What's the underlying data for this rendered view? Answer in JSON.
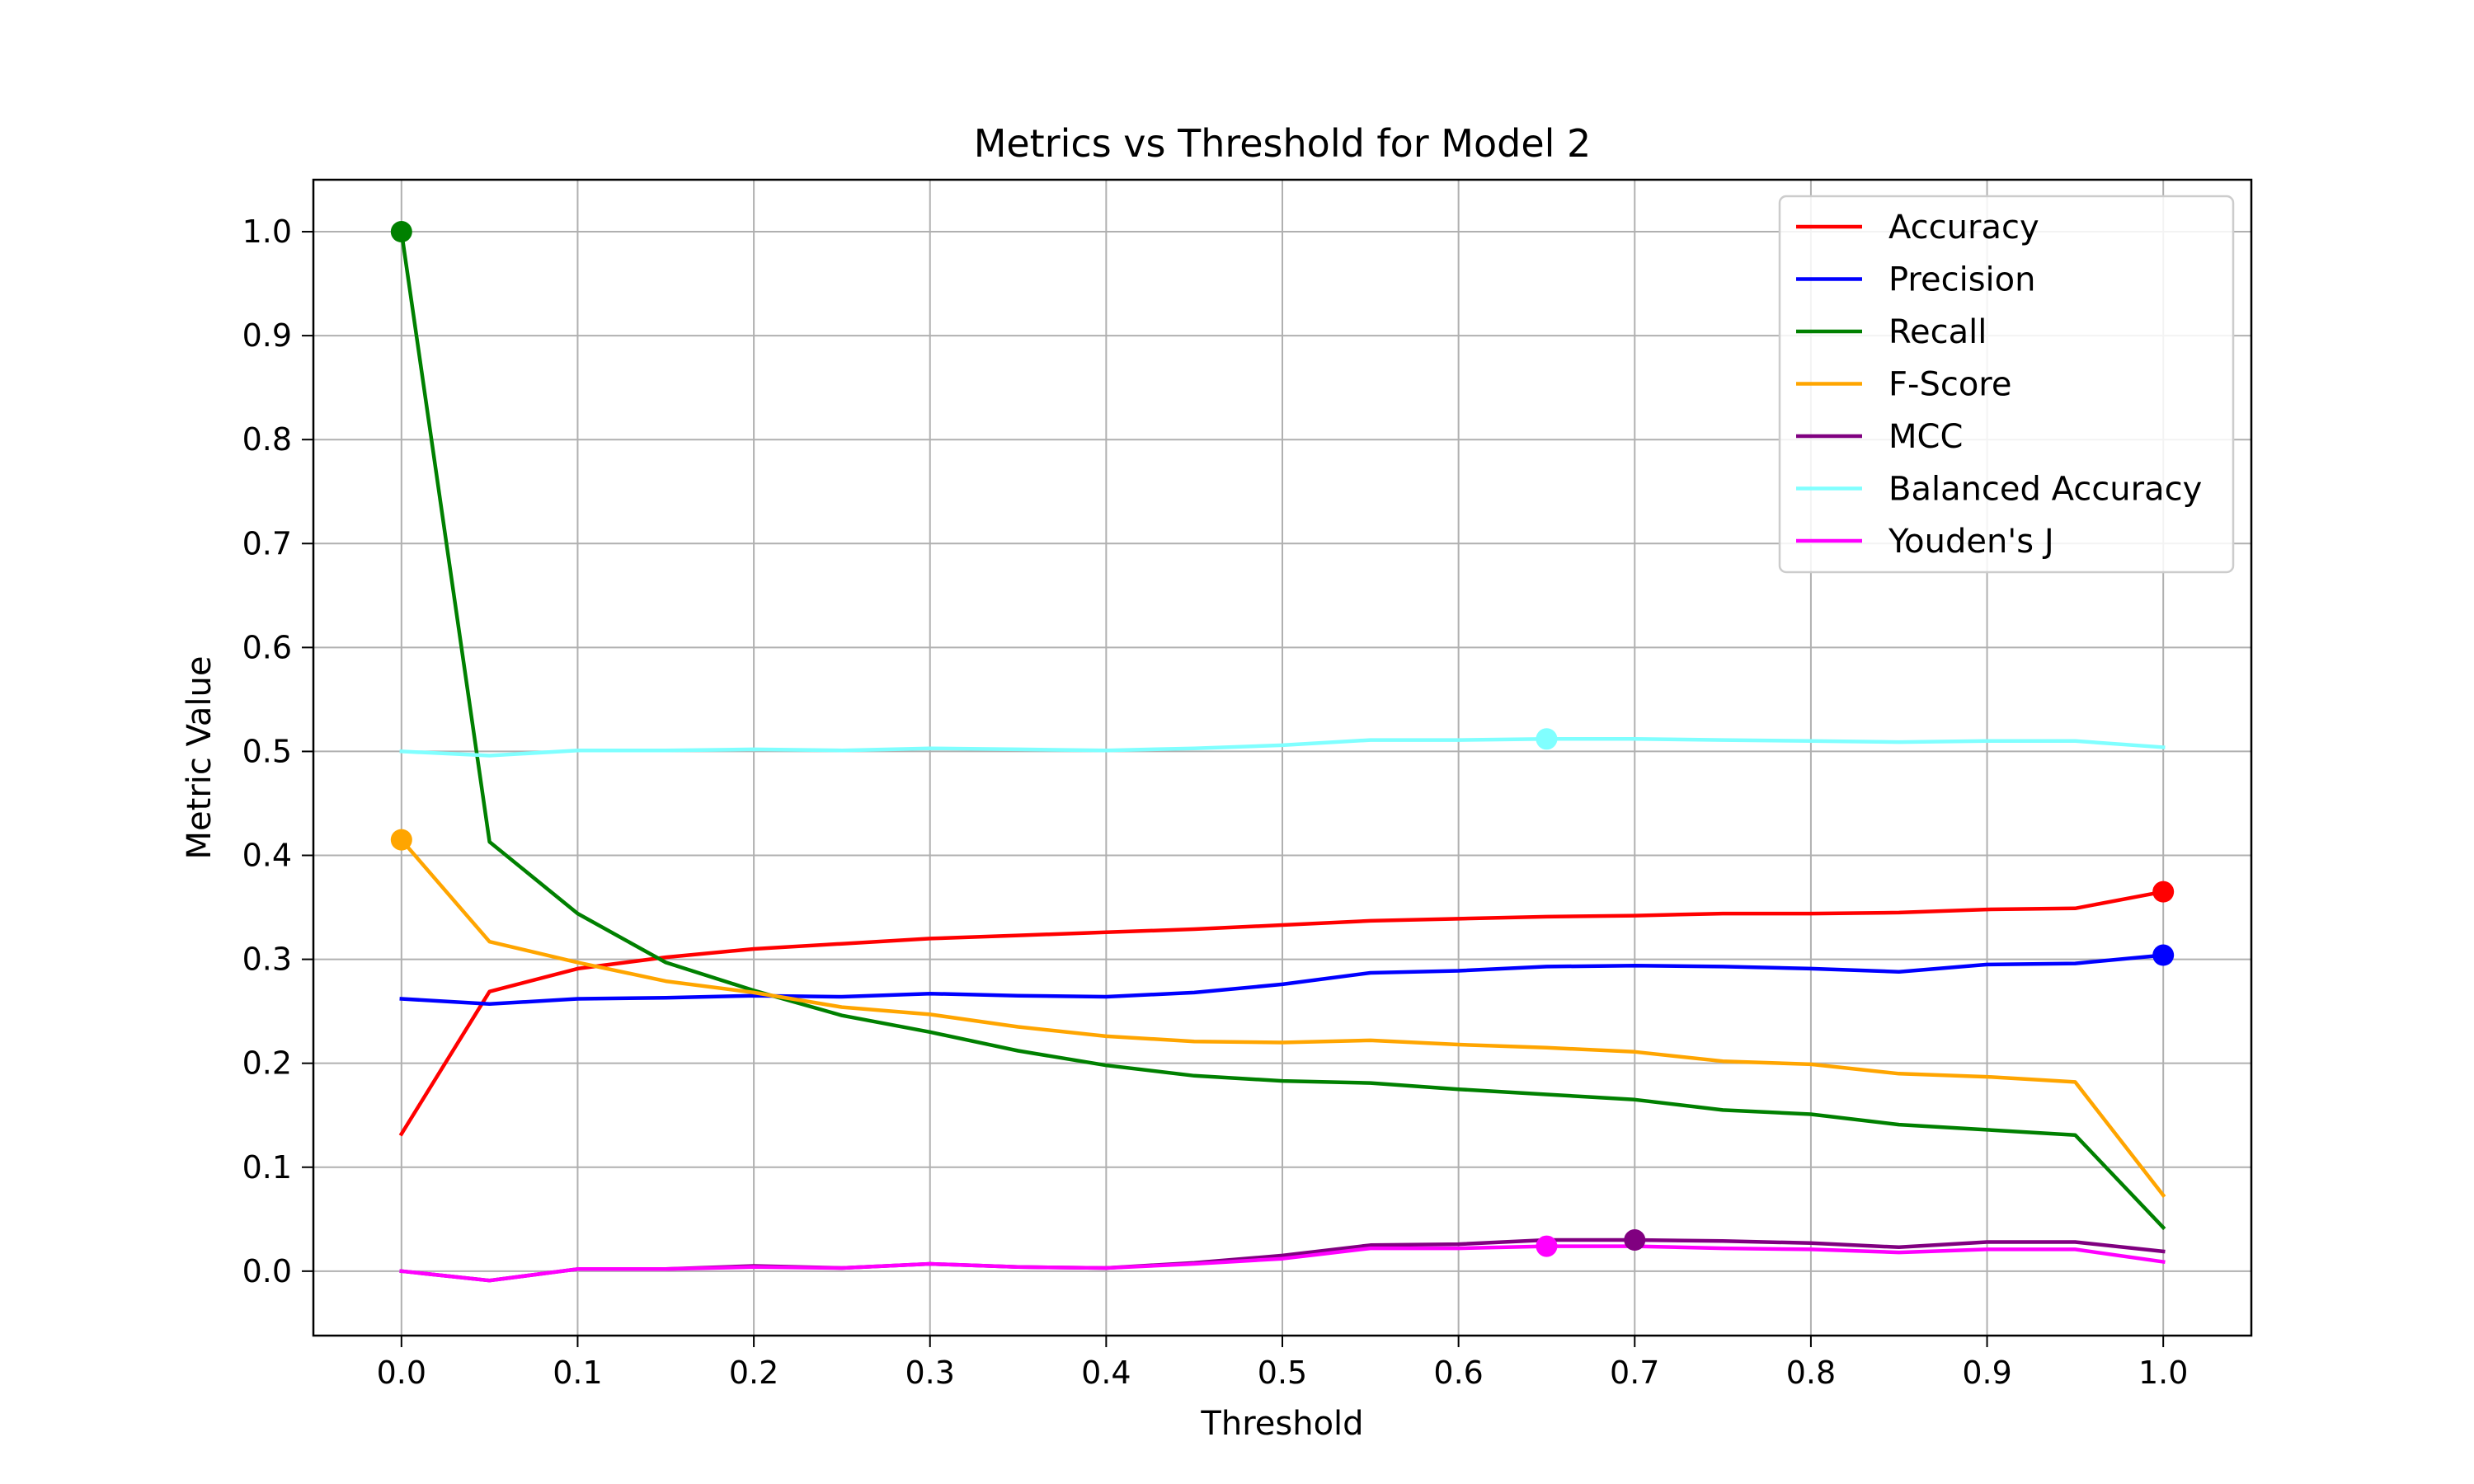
{
  "chart_data": {
    "type": "line",
    "title": "Metrics vs Threshold for Model 2",
    "xlabel": "Threshold",
    "ylabel": "Metric Value",
    "xlim": [
      -0.05,
      1.05
    ],
    "ylim": [
      -0.062,
      1.05
    ],
    "xticks": [
      "0.0",
      "0.1",
      "0.2",
      "0.3",
      "0.4",
      "0.5",
      "0.6",
      "0.7",
      "0.8",
      "0.9",
      "1.0"
    ],
    "yticks": [
      "0.0",
      "0.1",
      "0.2",
      "0.3",
      "0.4",
      "0.5",
      "0.6",
      "0.7",
      "0.8",
      "0.9",
      "1.0"
    ],
    "grid": true,
    "legend_position": "top-right",
    "x": [
      0.0,
      0.05,
      0.1,
      0.15,
      0.2,
      0.25,
      0.3,
      0.35,
      0.4,
      0.45,
      0.5,
      0.55,
      0.6,
      0.65,
      0.7,
      0.75,
      0.8,
      0.85,
      0.9,
      0.95,
      1.0
    ],
    "series": [
      {
        "name": "Accuracy",
        "color": "#ff0000",
        "values": [
          0.132,
          0.269,
          0.291,
          0.302,
          0.31,
          0.315,
          0.32,
          0.323,
          0.326,
          0.329,
          0.333,
          0.337,
          0.339,
          0.341,
          0.342,
          0.344,
          0.344,
          0.345,
          0.348,
          0.349,
          0.365
        ],
        "marker": {
          "x": 1.0,
          "y": 0.365
        }
      },
      {
        "name": "Precision",
        "color": "#0000ff",
        "values": [
          0.262,
          0.257,
          0.262,
          0.263,
          0.265,
          0.264,
          0.267,
          0.265,
          0.264,
          0.268,
          0.276,
          0.287,
          0.289,
          0.293,
          0.294,
          0.293,
          0.291,
          0.288,
          0.295,
          0.296,
          0.304
        ],
        "marker": {
          "x": 1.0,
          "y": 0.304
        }
      },
      {
        "name": "Recall",
        "color": "#008000",
        "values": [
          1.0,
          0.413,
          0.344,
          0.297,
          0.27,
          0.246,
          0.23,
          0.212,
          0.198,
          0.188,
          0.183,
          0.181,
          0.175,
          0.17,
          0.165,
          0.155,
          0.151,
          0.141,
          0.136,
          0.131,
          0.042
        ],
        "marker": {
          "x": 0.0,
          "y": 1.0
        }
      },
      {
        "name": "F-Score",
        "color": "#ffa500",
        "values": [
          0.415,
          0.317,
          0.297,
          0.279,
          0.268,
          0.254,
          0.247,
          0.235,
          0.226,
          0.221,
          0.22,
          0.222,
          0.218,
          0.215,
          0.211,
          0.202,
          0.199,
          0.19,
          0.187,
          0.182,
          0.073
        ],
        "marker": {
          "x": 0.0,
          "y": 0.415
        }
      },
      {
        "name": "MCC",
        "color": "#800080",
        "values": [
          0.0,
          -0.009,
          0.002,
          0.002,
          0.005,
          0.003,
          0.007,
          0.004,
          0.003,
          0.008,
          0.015,
          0.025,
          0.026,
          0.03,
          0.03,
          0.029,
          0.027,
          0.023,
          0.028,
          0.028,
          0.019
        ],
        "marker": {
          "x": 0.7,
          "y": 0.03
        }
      },
      {
        "name": "Balanced Accuracy",
        "color": "#80ffff",
        "values": [
          0.5,
          0.496,
          0.501,
          0.501,
          0.502,
          0.501,
          0.503,
          0.502,
          0.501,
          0.503,
          0.506,
          0.511,
          0.511,
          0.512,
          0.512,
          0.511,
          0.51,
          0.509,
          0.51,
          0.51,
          0.504
        ],
        "marker": {
          "x": 0.65,
          "y": 0.512
        }
      },
      {
        "name": "Youden's J",
        "color": "#ff00ff",
        "values": [
          0.0,
          -0.009,
          0.002,
          0.002,
          0.004,
          0.003,
          0.007,
          0.004,
          0.003,
          0.007,
          0.012,
          0.022,
          0.022,
          0.024,
          0.024,
          0.022,
          0.021,
          0.018,
          0.021,
          0.021,
          0.009
        ],
        "marker": {
          "x": 0.65,
          "y": 0.024
        }
      }
    ]
  }
}
